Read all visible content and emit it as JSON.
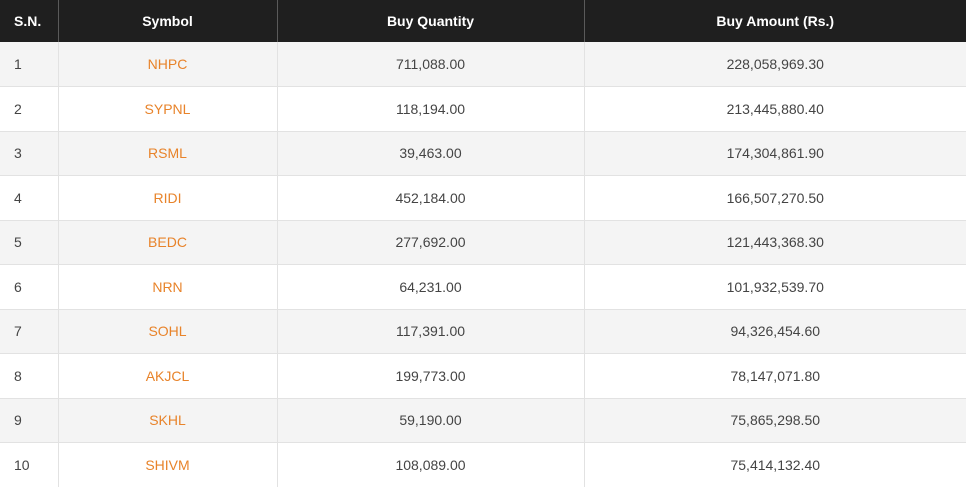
{
  "table": {
    "headers": {
      "sn": "S.N.",
      "symbol": "Symbol",
      "buy_quantity": "Buy Quantity",
      "buy_amount": "Buy Amount (Rs.)"
    },
    "rows": [
      {
        "sn": "1",
        "symbol": "NHPC",
        "qty": "711,088.00",
        "amount": "228,058,969.30"
      },
      {
        "sn": "2",
        "symbol": "SYPNL",
        "qty": "118,194.00",
        "amount": "213,445,880.40"
      },
      {
        "sn": "3",
        "symbol": "RSML",
        "qty": "39,463.00",
        "amount": "174,304,861.90"
      },
      {
        "sn": "4",
        "symbol": "RIDI",
        "qty": "452,184.00",
        "amount": "166,507,270.50"
      },
      {
        "sn": "5",
        "symbol": "BEDC",
        "qty": "277,692.00",
        "amount": "121,443,368.30"
      },
      {
        "sn": "6",
        "symbol": "NRN",
        "qty": "64,231.00",
        "amount": "101,932,539.70"
      },
      {
        "sn": "7",
        "symbol": "SOHL",
        "qty": "117,391.00",
        "amount": "94,326,454.60"
      },
      {
        "sn": "8",
        "symbol": "AKJCL",
        "qty": "199,773.00",
        "amount": "78,147,071.80"
      },
      {
        "sn": "9",
        "symbol": "SKHL",
        "qty": "59,190.00",
        "amount": "75,865,298.50"
      },
      {
        "sn": "10",
        "symbol": "SHIVM",
        "qty": "108,089.00",
        "amount": "75,414,132.40"
      }
    ]
  },
  "colors": {
    "header_bg": "#1f1f1f",
    "symbol_link": "#e8832a",
    "row_alt": "#f4f4f4"
  }
}
